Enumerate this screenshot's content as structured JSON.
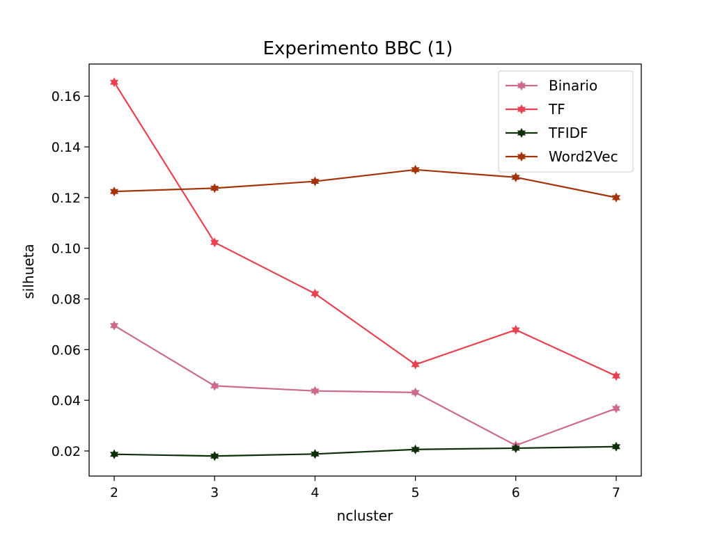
{
  "chart_data": {
    "type": "line",
    "title": "Experimento BBC (1)",
    "xlabel": "ncluster",
    "ylabel": "silhueta",
    "x": [
      2,
      3,
      4,
      5,
      6,
      7
    ],
    "x_ticks": [
      "2",
      "3",
      "4",
      "5",
      "6",
      "7"
    ],
    "y_ticks": [
      "0.02",
      "0.04",
      "0.06",
      "0.08",
      "0.10",
      "0.12",
      "0.14",
      "0.16"
    ],
    "y_tick_values": [
      0.02,
      0.04,
      0.06,
      0.08,
      0.1,
      0.12,
      0.14,
      0.16
    ],
    "xlim": [
      1.75,
      7.25
    ],
    "ylim": [
      0.0101,
      0.1727
    ],
    "grid": false,
    "legend_position": "top-right",
    "marker": "star",
    "series": [
      {
        "name": "Binario",
        "color": "#cc6a8a",
        "values": [
          0.0695,
          0.0457,
          0.0437,
          0.0431,
          0.0222,
          0.0368
        ]
      },
      {
        "name": "TF",
        "color": "#e8414f",
        "values": [
          0.1655,
          0.1023,
          0.0821,
          0.0541,
          0.0678,
          0.0496
        ]
      },
      {
        "name": "TFIDF",
        "color": "#0e2f0a",
        "values": [
          0.0187,
          0.018,
          0.0188,
          0.0206,
          0.0211,
          0.0217
        ]
      },
      {
        "name": "Word2Vec",
        "color": "#a3340a",
        "values": [
          0.1224,
          0.1237,
          0.1264,
          0.131,
          0.128,
          0.12
        ]
      }
    ]
  }
}
